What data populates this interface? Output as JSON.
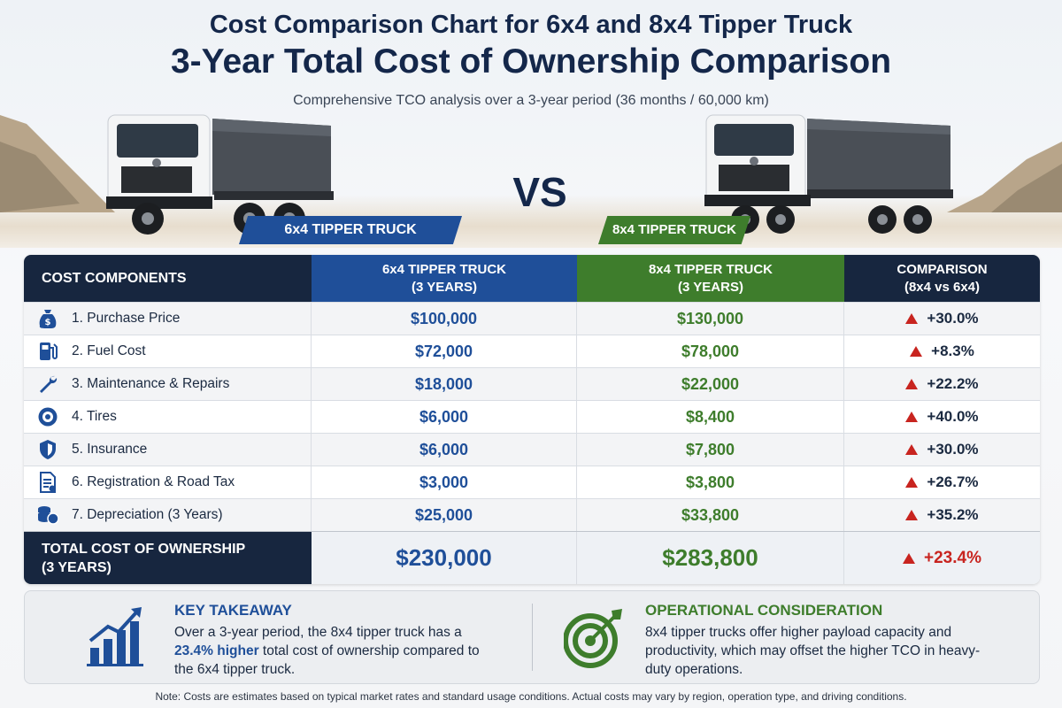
{
  "header": {
    "title": "Cost Comparison Chart for 6x4 and 8x4 Tipper Truck",
    "subtitle": "3-Year Total Cost of Ownership Comparison",
    "description": "Comprehensive TCO analysis over a 3-year period (36 months / 60,000 km)"
  },
  "hero": {
    "vs": "VS",
    "left_label": "6x4 TIPPER TRUCK",
    "right_label": "8x4 TIPPER TRUCK"
  },
  "table": {
    "headers": {
      "components": "COST COMPONENTS",
      "col_6x4_line1": "6x4 TIPPER TRUCK",
      "col_6x4_line2": "(3 YEARS)",
      "col_8x4_line1": "8x4 TIPPER TRUCK",
      "col_8x4_line2": "(3 YEARS)",
      "comparison_line1": "COMPARISON",
      "comparison_line2": "(8x4 vs 6x4)"
    },
    "rows": [
      {
        "icon": "money-bag-icon",
        "label": "1. Purchase Price",
        "v6x4": "$100,000",
        "v8x4": "$130,000",
        "diff": "+30.0%"
      },
      {
        "icon": "fuel-pump-icon",
        "label": "2. Fuel Cost",
        "v6x4": "$72,000",
        "v8x4": "$78,000",
        "diff": "+8.3%"
      },
      {
        "icon": "wrench-icon",
        "label": "3. Maintenance & Repairs",
        "v6x4": "$18,000",
        "v8x4": "$22,000",
        "diff": "+22.2%"
      },
      {
        "icon": "tire-icon",
        "label": "4. Tires",
        "v6x4": "$6,000",
        "v8x4": "$8,400",
        "diff": "+40.0%"
      },
      {
        "icon": "shield-icon",
        "label": "5. Insurance",
        "v6x4": "$6,000",
        "v8x4": "$7,800",
        "diff": "+30.0%"
      },
      {
        "icon": "document-icon",
        "label": "6. Registration & Road Tax",
        "v6x4": "$3,000",
        "v8x4": "$3,800",
        "diff": "+26.7%"
      },
      {
        "icon": "coins-icon",
        "label": "7. Depreciation (3 Years)",
        "v6x4": "$25,000",
        "v8x4": "$33,800",
        "diff": "+35.2%"
      }
    ],
    "total": {
      "label_line1": "TOTAL COST OF OWNERSHIP",
      "label_line2": "(3 YEARS)",
      "v6x4": "$230,000",
      "v8x4": "$283,800",
      "diff": "+23.4%"
    }
  },
  "key_takeaway": {
    "title": "KEY TAKEAWAY",
    "text_before": "Over a 3-year period, the 8x4 tipper truck has a ",
    "highlight": "23.4% higher",
    "text_after": " total cost of ownership compared to the 6x4 tipper truck."
  },
  "operational": {
    "title": "OPERATIONAL CONSIDERATION",
    "text": "8x4 tipper trucks offer higher payload capacity and productivity, which may offset the higher TCO in heavy-duty operations."
  },
  "note": "Note: Costs are estimates based on typical market rates and standard usage conditions. Actual costs may vary by region, operation type, and driving conditions.",
  "colors": {
    "navy": "#17263f",
    "blue": "#1f4f99",
    "green": "#3e7d2c",
    "red": "#c8241f"
  }
}
